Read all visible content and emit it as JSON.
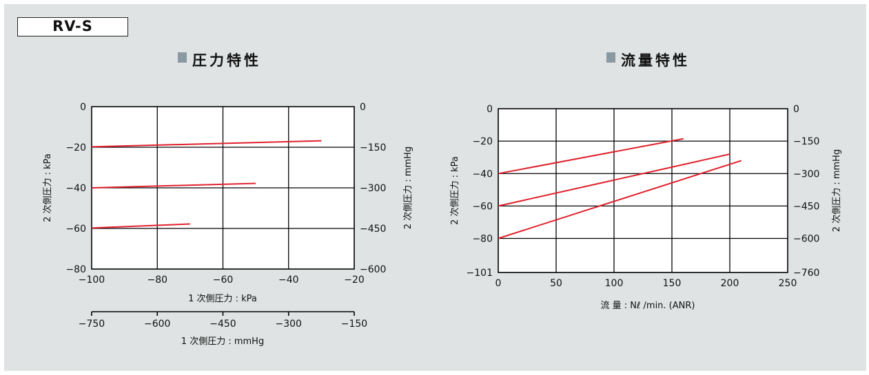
{
  "model": "RV-S",
  "chart_data": [
    {
      "type": "line",
      "title": "圧力特性",
      "x": {
        "label": "1 次側圧力 : kPa",
        "lim": [
          -100,
          -20
        ],
        "ticks": [
          "−100",
          "−80",
          "−60",
          "−40",
          "−20"
        ],
        "tick_values": [
          -100,
          -80,
          -60,
          -40,
          -20
        ]
      },
      "x2": {
        "label": "1 次側圧力 : mmHg",
        "ticks": [
          "−750",
          "−600",
          "−450",
          "−300",
          "−150"
        ]
      },
      "y": {
        "label": "2 次側圧力 : kPa",
        "lim": [
          -80,
          0
        ],
        "ticks": [
          "0",
          "−20",
          "−40",
          "−60",
          "−80"
        ],
        "tick_values": [
          0,
          -20,
          -40,
          -60,
          -80
        ]
      },
      "y2": {
        "label": "2 次側圧力 : mmHg",
        "ticks": [
          "0",
          "−150",
          "−300",
          "−450",
          "−600"
        ]
      },
      "grid": true,
      "series": [
        {
          "points": [
            [
              -100,
              -19.8
            ],
            [
              -30,
              -16.8
            ]
          ]
        },
        {
          "points": [
            [
              -100,
              -40
            ],
            [
              -50,
              -37.8
            ]
          ]
        },
        {
          "points": [
            [
              -100,
              -59.8
            ],
            [
              -70,
              -57.8
            ]
          ]
        }
      ]
    },
    {
      "type": "line",
      "title": "流量特性",
      "x": {
        "label": "流 量 : Nℓ /min. (ANR)",
        "lim": [
          0,
          250
        ],
        "ticks": [
          "0",
          "50",
          "100",
          "150",
          "200",
          "250"
        ],
        "tick_values": [
          0,
          50,
          100,
          150,
          200,
          250
        ]
      },
      "y": {
        "label": "2 次側圧力 : kPa",
        "lim": [
          -101,
          0
        ],
        "ticks": [
          "0",
          "−20",
          "−40",
          "−60",
          "−80",
          "−101"
        ],
        "tick_values": [
          0,
          -20,
          -40,
          -60,
          -80,
          -101
        ]
      },
      "y2": {
        "label": "2 次側圧力 : mmHg",
        "ticks": [
          "0",
          "−150",
          "−300",
          "−450",
          "−600",
          "−760"
        ]
      },
      "grid": true,
      "series": [
        {
          "points": [
            [
              0,
              -40
            ],
            [
              160,
              -18.5
            ]
          ]
        },
        {
          "points": [
            [
              0,
              -60
            ],
            [
              200,
              -28
            ]
          ]
        },
        {
          "points": [
            [
              0,
              -80
            ],
            [
              210,
              -32
            ]
          ]
        }
      ]
    }
  ]
}
